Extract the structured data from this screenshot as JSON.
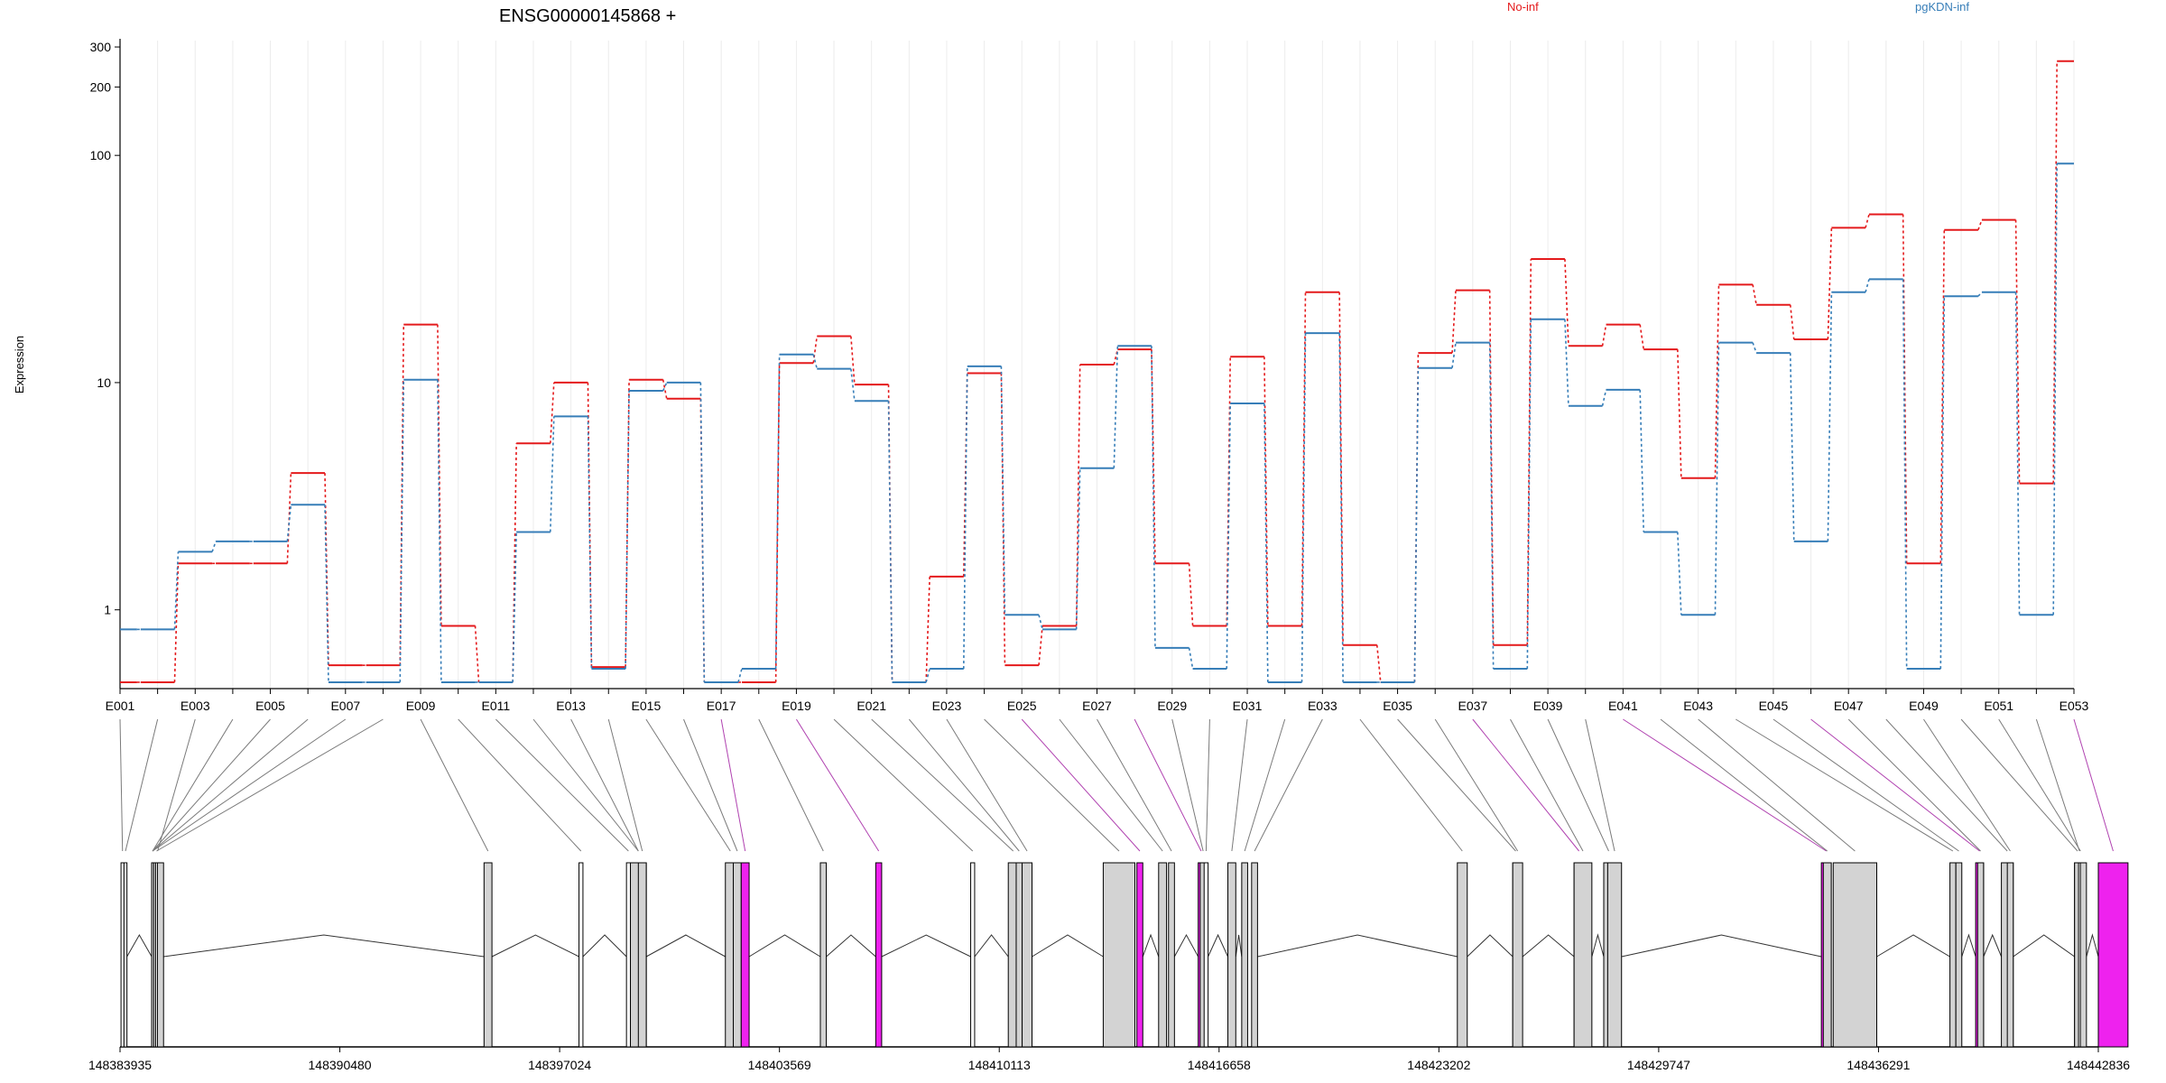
{
  "chart_data": {
    "type": "line",
    "title": "ENSG00000145868 +",
    "ylabel": "Expression",
    "xlabel": "",
    "yscale": "log",
    "ylim": [
      0.45,
      320
    ],
    "y_ticks": [
      1,
      10,
      100,
      200,
      300
    ],
    "y_tick_labels": [
      "1",
      "10",
      "100",
      "200",
      "300"
    ],
    "grid": "vertical-light",
    "legend_placement": "top",
    "categories": [
      "E001",
      "E002",
      "E003",
      "E004",
      "E005",
      "E006",
      "E007",
      "E008",
      "E009",
      "E010",
      "E011",
      "E012",
      "E013",
      "E014",
      "E015",
      "E016",
      "E017",
      "E018",
      "E019",
      "E020",
      "E021",
      "E022",
      "E023",
      "E024",
      "E025",
      "E026",
      "E027",
      "E028",
      "E029",
      "E030",
      "E031",
      "E032",
      "E033",
      "E034",
      "E035",
      "E036",
      "E037",
      "E038",
      "E039",
      "E040",
      "E041",
      "E042",
      "E043",
      "E044",
      "E045",
      "E046",
      "E047",
      "E048",
      "E049",
      "E050",
      "E051",
      "E052",
      "E053"
    ],
    "x_tick_labels": [
      "E001",
      "E003",
      "E005",
      "E007",
      "E009",
      "E011",
      "E013",
      "E015",
      "E017",
      "E019",
      "E021",
      "E023",
      "E025",
      "E027",
      "E029",
      "E031",
      "E033",
      "E035",
      "E037",
      "E039",
      "E041",
      "E043",
      "E045",
      "E047",
      "E049",
      "E051",
      "E053"
    ],
    "series": [
      {
        "name": "No-inf",
        "color": "#e41a1c",
        "values": [
          0.48,
          0.48,
          1.6,
          1.6,
          1.6,
          4.0,
          0.57,
          0.57,
          18,
          0.85,
          0.48,
          5.4,
          10,
          0.56,
          10.3,
          8.5,
          0.48,
          0.48,
          12.2,
          16,
          9.8,
          0.48,
          1.4,
          11,
          0.57,
          0.85,
          12,
          14,
          1.6,
          0.85,
          13,
          0.85,
          25,
          0.7,
          0.48,
          13.5,
          25.5,
          0.7,
          35,
          14.5,
          18,
          14,
          3.8,
          27,
          22,
          15.5,
          48,
          55,
          1.6,
          47,
          52,
          3.6,
          260
        ]
      },
      {
        "name": "pgKDN-inf",
        "color": "#377eb8",
        "values": [
          0.82,
          0.82,
          1.8,
          2.0,
          2.0,
          2.9,
          0.48,
          0.48,
          10.3,
          0.48,
          0.48,
          2.2,
          7.1,
          0.55,
          9.2,
          10,
          0.48,
          0.55,
          13.3,
          11.5,
          8.3,
          0.48,
          0.55,
          11.8,
          0.95,
          0.82,
          4.2,
          14.5,
          0.68,
          0.55,
          8.1,
          0.48,
          16.5,
          0.48,
          0.48,
          11.6,
          15,
          0.55,
          19,
          7.9,
          9.3,
          2.2,
          0.95,
          15,
          13.5,
          2.0,
          25,
          28.5,
          0.55,
          24,
          25,
          0.95,
          92
        ]
      }
    ],
    "genomic_axis": {
      "tick_labels": [
        "148383935",
        "148390480",
        "148397024",
        "148403569",
        "148410113",
        "148416658",
        "148423202",
        "148429747",
        "148436291",
        "148442836"
      ]
    },
    "exon_highlight_color": "#ee22ee",
    "exon_default_color": "#d3d3d3"
  }
}
